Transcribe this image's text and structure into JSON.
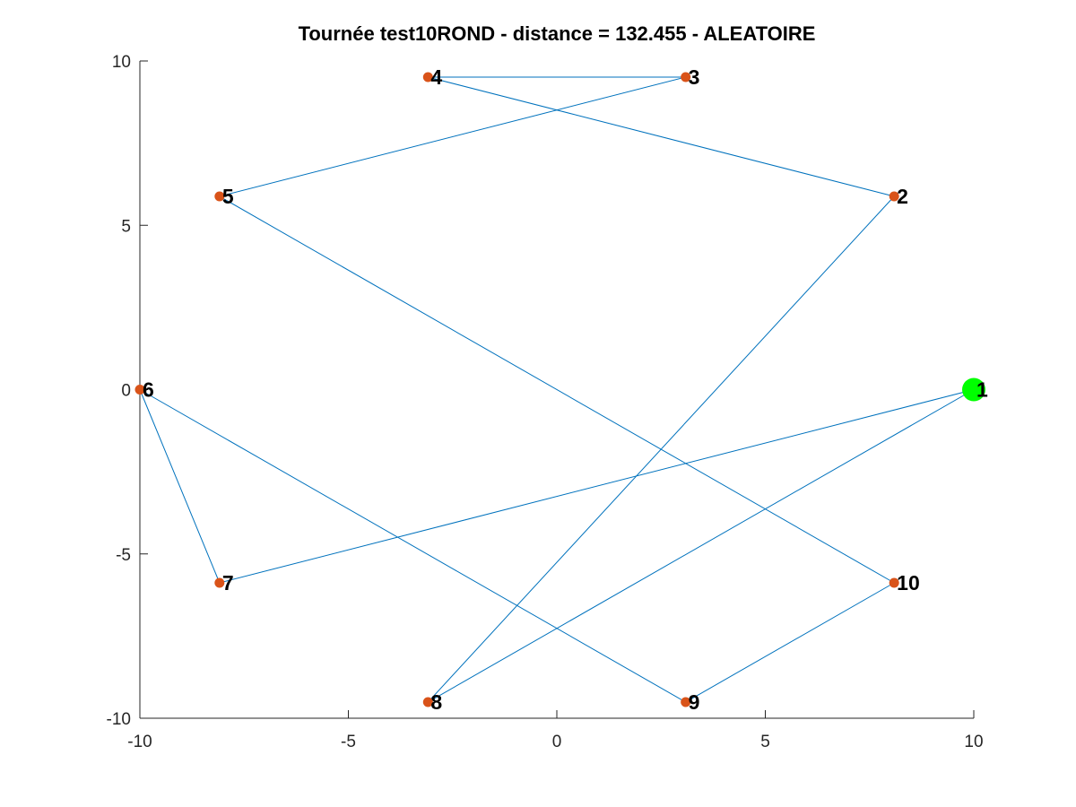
{
  "chart_data": {
    "type": "scatter",
    "title": "Tournée test10ROND - distance = 132.455 - ALEATOIRE",
    "xlabel": "",
    "ylabel": "",
    "xlim": [
      -10,
      10
    ],
    "ylim": [
      -10,
      10
    ],
    "xticks": [
      -10,
      -5,
      0,
      5,
      10
    ],
    "yticks": [
      -10,
      -5,
      0,
      5,
      10
    ],
    "grid": false,
    "points": [
      {
        "label": "1",
        "x": 10,
        "y": 0,
        "start": true
      },
      {
        "label": "2",
        "x": 8.09,
        "y": 5.88
      },
      {
        "label": "3",
        "x": 3.09,
        "y": 9.51
      },
      {
        "label": "4",
        "x": -3.09,
        "y": 9.51
      },
      {
        "label": "5",
        "x": -8.09,
        "y": 5.88
      },
      {
        "label": "6",
        "x": -10,
        "y": 0
      },
      {
        "label": "7",
        "x": -8.09,
        "y": -5.88
      },
      {
        "label": "8",
        "x": -3.09,
        "y": -9.51
      },
      {
        "label": "9",
        "x": 3.09,
        "y": -9.51
      },
      {
        "label": "10",
        "x": 8.09,
        "y": -5.88
      }
    ],
    "tour": [
      "1",
      "7",
      "6",
      "9",
      "10",
      "5",
      "3",
      "4",
      "2",
      "8",
      "1"
    ],
    "colors": {
      "line": "#0072bd",
      "point": "#d95319",
      "start": "#00ff00",
      "axis": "#262626"
    }
  }
}
